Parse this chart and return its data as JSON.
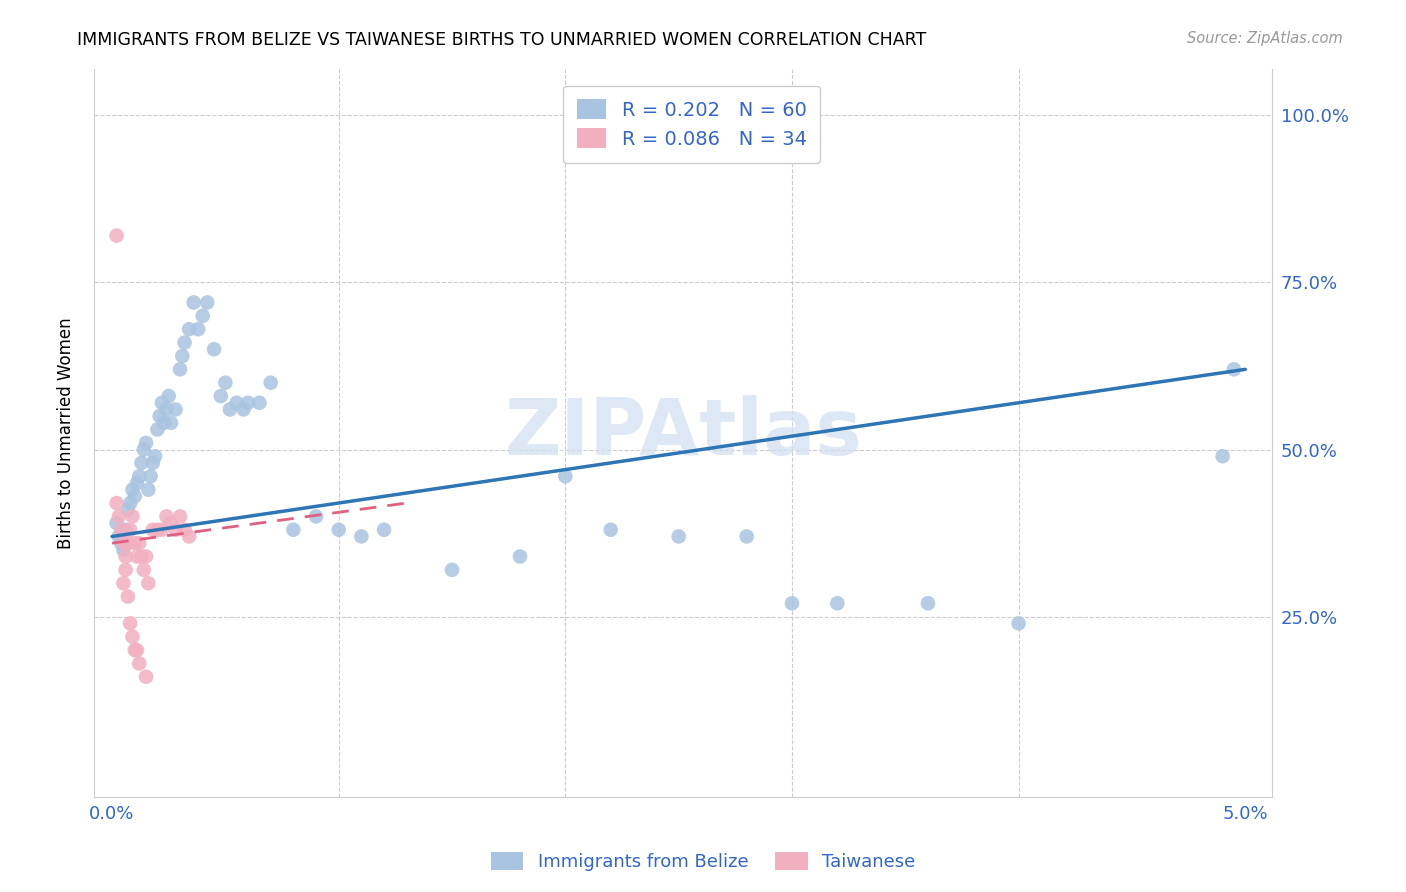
{
  "title": "IMMIGRANTS FROM BELIZE VS TAIWANESE BIRTHS TO UNMARRIED WOMEN CORRELATION CHART",
  "source": "Source: ZipAtlas.com",
  "ylabel": "Births to Unmarried Women",
  "x_min": 0.0,
  "x_max": 0.05,
  "y_min": 0.0,
  "y_max": 1.05,
  "legend_r1": "R = 0.202",
  "legend_n1": "N = 60",
  "legend_r2": "R = 0.086",
  "legend_n2": "N = 34",
  "color_belize": "#a8c4e0",
  "color_taiwan": "#f2afc0",
  "color_line_belize": "#2e75b6",
  "color_line_taiwan": "#e06080",
  "watermark_color": "#d0dff0",
  "belize_x": [
    0.0002,
    0.0003,
    0.0004,
    0.0005,
    0.0006,
    0.0007,
    0.0008,
    0.0009,
    0.001,
    0.0011,
    0.0012,
    0.0013,
    0.0014,
    0.0015,
    0.0016,
    0.0017,
    0.0018,
    0.0019,
    0.002,
    0.0021,
    0.0022,
    0.0023,
    0.0024,
    0.0025,
    0.0026,
    0.0028,
    0.003,
    0.0031,
    0.0032,
    0.0034,
    0.0036,
    0.0038,
    0.004,
    0.0042,
    0.0045,
    0.0048,
    0.005,
    0.0052,
    0.0055,
    0.0058,
    0.006,
    0.0065,
    0.007,
    0.008,
    0.009,
    0.01,
    0.011,
    0.012,
    0.015,
    0.018,
    0.02,
    0.022,
    0.025,
    0.028,
    0.03,
    0.032,
    0.036,
    0.04,
    0.049,
    0.0495
  ],
  "belize_y": [
    0.39,
    0.37,
    0.36,
    0.35,
    0.38,
    0.41,
    0.42,
    0.44,
    0.43,
    0.45,
    0.46,
    0.48,
    0.5,
    0.51,
    0.44,
    0.46,
    0.48,
    0.49,
    0.53,
    0.55,
    0.57,
    0.54,
    0.56,
    0.58,
    0.54,
    0.56,
    0.62,
    0.64,
    0.66,
    0.68,
    0.72,
    0.68,
    0.7,
    0.72,
    0.65,
    0.58,
    0.6,
    0.56,
    0.57,
    0.56,
    0.57,
    0.57,
    0.6,
    0.38,
    0.4,
    0.38,
    0.37,
    0.38,
    0.32,
    0.34,
    0.46,
    0.38,
    0.37,
    0.37,
    0.27,
    0.27,
    0.27,
    0.24,
    0.49,
    0.62
  ],
  "taiwan_x": [
    0.0002,
    0.0003,
    0.0004,
    0.0005,
    0.0006,
    0.0007,
    0.0008,
    0.0009,
    0.001,
    0.0011,
    0.0012,
    0.0013,
    0.0014,
    0.0015,
    0.0016,
    0.0018,
    0.002,
    0.0022,
    0.0024,
    0.0026,
    0.0028,
    0.003,
    0.0032,
    0.0034,
    0.0005,
    0.0006,
    0.0007,
    0.0008,
    0.0009,
    0.001,
    0.0011,
    0.0012,
    0.0015,
    0.0002
  ],
  "taiwan_y": [
    0.42,
    0.4,
    0.38,
    0.36,
    0.34,
    0.36,
    0.38,
    0.4,
    0.36,
    0.34,
    0.36,
    0.34,
    0.32,
    0.34,
    0.3,
    0.38,
    0.38,
    0.38,
    0.4,
    0.39,
    0.38,
    0.4,
    0.38,
    0.37,
    0.3,
    0.32,
    0.28,
    0.24,
    0.22,
    0.2,
    0.2,
    0.18,
    0.16,
    0.82
  ],
  "belize_line": [
    0.0,
    0.05,
    0.37,
    0.62
  ],
  "taiwan_line": [
    0.0,
    0.013,
    0.36,
    0.42
  ]
}
